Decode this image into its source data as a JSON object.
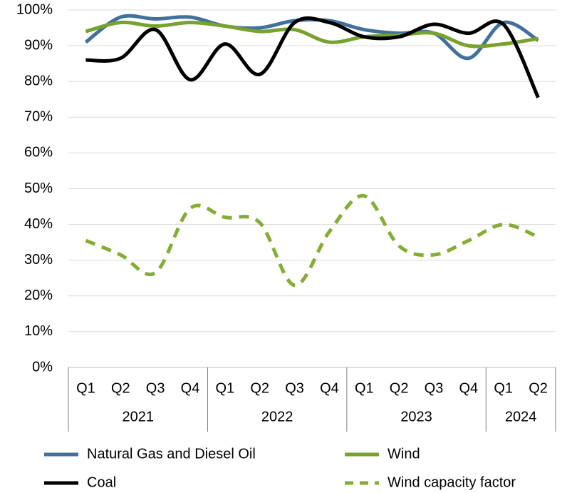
{
  "chart_data": {
    "type": "line",
    "category_groups": [
      {
        "label": "2021",
        "categories": [
          "Q1",
          "Q2",
          "Q3",
          "Q4"
        ]
      },
      {
        "label": "2022",
        "categories": [
          "Q1",
          "Q2",
          "Q3",
          "Q4"
        ]
      },
      {
        "label": "2023",
        "categories": [
          "Q1",
          "Q2",
          "Q3",
          "Q4"
        ]
      },
      {
        "label": "2024",
        "categories": [
          "Q1",
          "Q2"
        ]
      }
    ],
    "series": [
      {
        "name": "Natural Gas and Diesel Oil",
        "color": "#41709c",
        "style": "solid",
        "values": [
          91,
          98,
          97.5,
          98,
          95.5,
          95,
          97,
          97,
          94.5,
          93.5,
          93.5,
          86.5,
          96.5,
          91.5
        ]
      },
      {
        "name": "Wind",
        "color": "#77a22d",
        "style": "solid",
        "values": [
          94,
          96.5,
          95.5,
          96.5,
          95.5,
          94,
          94.5,
          91,
          92.5,
          93,
          93.5,
          90,
          90.5,
          92
        ]
      },
      {
        "name": "Coal",
        "color": "#000000",
        "style": "solid",
        "values": [
          86,
          86.5,
          94.5,
          80.5,
          90.5,
          82,
          96.5,
          96.5,
          92.5,
          92.5,
          96,
          93.5,
          96,
          75.5
        ]
      },
      {
        "name": "Wind capacity factor",
        "color": "#86ad33",
        "style": "dashed",
        "values": [
          35.5,
          31.5,
          26.5,
          44.5,
          42,
          40.5,
          23,
          38,
          48,
          34,
          31.5,
          35.5,
          40,
          36.5
        ]
      }
    ],
    "ylim": [
      0,
      100
    ],
    "yticks": [
      {
        "value": 0,
        "label": "0%"
      },
      {
        "value": 10,
        "label": "10%"
      },
      {
        "value": 20,
        "label": "20%"
      },
      {
        "value": 30,
        "label": "30%"
      },
      {
        "value": 40,
        "label": "40%"
      },
      {
        "value": 50,
        "label": "50%"
      },
      {
        "value": 60,
        "label": "60%"
      },
      {
        "value": 70,
        "label": "70%"
      },
      {
        "value": 80,
        "label": "80%"
      },
      {
        "value": 90,
        "label": "90%"
      },
      {
        "value": 100,
        "label": "100%"
      }
    ],
    "grid": true,
    "smooth": true,
    "legend": "bottom"
  }
}
